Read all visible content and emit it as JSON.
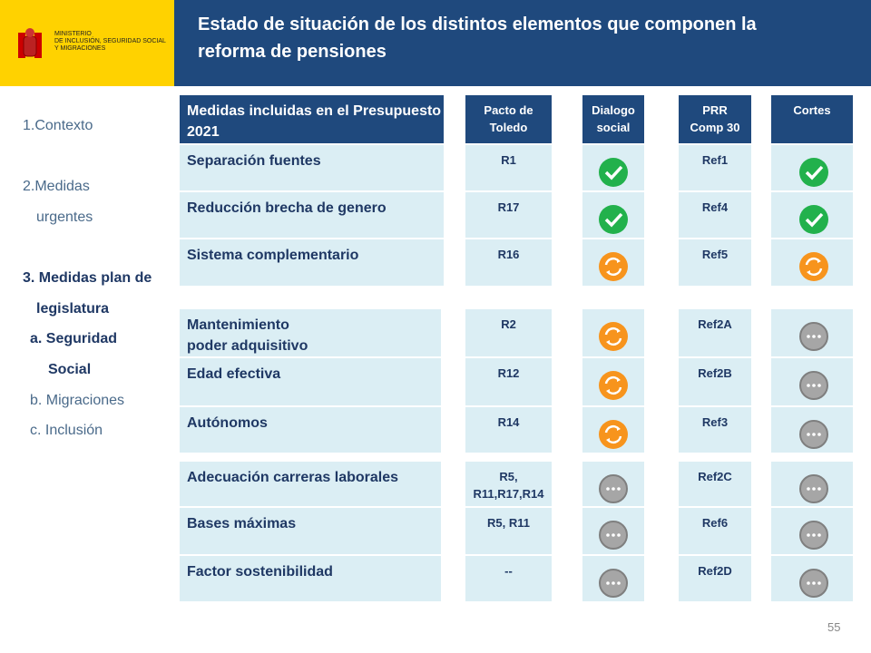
{
  "header": {
    "ministry": [
      "MINISTERIO",
      "DE INCLUSIÓN, SEGURIDAD SOCIAL",
      "Y MIGRACIONES"
    ],
    "title": "Estado de situación de los distintos elementos que componen la reforma de pensiones"
  },
  "sidebar": [
    "1.Contexto",
    "2.Medidas",
    "urgentes",
    "3. Medidas plan de",
    "legislatura",
    "a. Seguridad",
    "Social",
    "b. Migraciones",
    "c.  Inclusión"
  ],
  "table": {
    "columns": [
      "Medidas incluidas en el Presupuesto 2021",
      "Pacto de Toledo",
      "Dialogo social",
      "PRR\nComp 30",
      "Cortes"
    ],
    "rows": [
      [
        "Separación fuentes",
        "R1",
        "Ref1"
      ],
      [
        "Reducción brecha de genero",
        "R17",
        "Ref4"
      ],
      [
        "Sistema complementario",
        "R16",
        "Ref5"
      ],
      [
        "Mantenimiento\npoder adquisitivo",
        "R2",
        "Ref2A"
      ],
      [
        "Edad efectiva",
        "R12",
        "Ref2B"
      ],
      [
        "Autónomos",
        "R14",
        "Ref3"
      ],
      [
        "Adecuación carreras laborales",
        "R5,\nR11,R17,R14",
        "Ref2C"
      ],
      [
        "Bases máximas",
        "R5, R11",
        "Ref6"
      ],
      [
        "Factor sostenibilidad",
        "--",
        "Ref2D"
      ]
    ]
  },
  "page_number": "55"
}
